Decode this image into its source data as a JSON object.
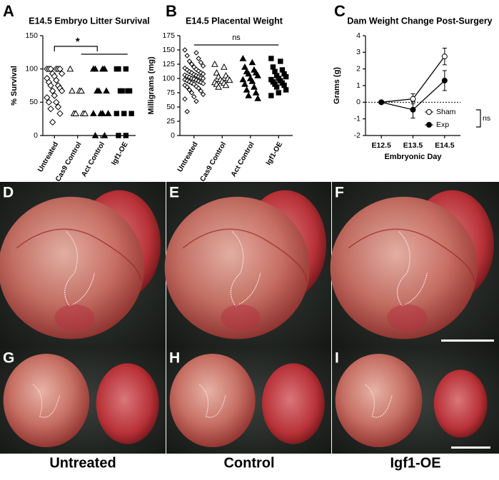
{
  "chart_data": [
    {
      "type": "dot",
      "panel": "A",
      "title": "E14.5 Embryo Litter Survival",
      "y_label": "% Survival",
      "categories": [
        "Untreated",
        "Cas9 Control",
        "Act Control",
        "Igf1-OE"
      ],
      "markers": [
        "diamond",
        "triangle",
        "triangle",
        "square"
      ],
      "filled": [
        false,
        false,
        true,
        true
      ],
      "values": [
        [
          100,
          100,
          100,
          100,
          100,
          100,
          93,
          93,
          89,
          86,
          83,
          80,
          75,
          75,
          71,
          67,
          67,
          60,
          57,
          50,
          50,
          43,
          40,
          33,
          20
        ],
        [
          100,
          67,
          67,
          67,
          33,
          33,
          33,
          33
        ],
        [
          100,
          100,
          100,
          100,
          67,
          67,
          67,
          33,
          33,
          33,
          33,
          0,
          0
        ],
        [
          100,
          100,
          100,
          67,
          67,
          67,
          67,
          33,
          33,
          33,
          0,
          0
        ]
      ],
      "ylim": [
        0,
        150
      ],
      "yticks": [
        0,
        50,
        100,
        150
      ],
      "annotation": "*"
    },
    {
      "type": "dot",
      "panel": "B",
      "title": "E14.5 Placental Weight",
      "y_label": "Milligrams (mg)",
      "categories": [
        "Untreated",
        "Cas9 Control",
        "Act Control",
        "Igf1-OE"
      ],
      "markers": [
        "diamond",
        "triangle",
        "triangle",
        "square"
      ],
      "filled": [
        false,
        false,
        true,
        true
      ],
      "values": [
        [
          150,
          145,
          140,
          135,
          130,
          128,
          125,
          122,
          120,
          118,
          116,
          115,
          113,
          112,
          110,
          110,
          108,
          107,
          106,
          105,
          104,
          103,
          102,
          101,
          100,
          100,
          99,
          98,
          97,
          96,
          95,
          94,
          93,
          92,
          91,
          90,
          88,
          86,
          85,
          83,
          80,
          78,
          75,
          72,
          68,
          64,
          60,
          42
        ],
        [
          125,
          120,
          110,
          105,
          103,
          100,
          98,
          97,
          95,
          93,
          92,
          90,
          88,
          85
        ],
        [
          135,
          128,
          120,
          115,
          112,
          110,
          108,
          105,
          100,
          98,
          95,
          90,
          85,
          80,
          75,
          70,
          65
        ],
        [
          135,
          130,
          120,
          115,
          112,
          108,
          105,
          103,
          100,
          98,
          96,
          94,
          92,
          90,
          88,
          85,
          80,
          75,
          70
        ]
      ],
      "ylim": [
        0,
        175
      ],
      "yticks": [
        0,
        25,
        50,
        75,
        100,
        125,
        150,
        175
      ],
      "annotation": "ns"
    },
    {
      "type": "line",
      "panel": "C",
      "title": "Dam Weight Change Post-Surgery",
      "y_label": "Grams (g)",
      "x_label": "Embryonic Day",
      "categories": [
        "E12.5",
        "E13.5",
        "E14.5"
      ],
      "series": [
        {
          "name": "Sham",
          "color": "#000000",
          "filled": false,
          "values": [
            0,
            0.2,
            2.75
          ],
          "errors": [
            0,
            0.3,
            0.5
          ]
        },
        {
          "name": "Exp",
          "color": "#000000",
          "filled": true,
          "values": [
            0,
            -0.45,
            1.3
          ],
          "errors": [
            0,
            0.5,
            0.6
          ]
        }
      ],
      "ylim": [
        -2,
        4
      ],
      "yticks": [
        -2,
        -1,
        0,
        1,
        2,
        3,
        4
      ],
      "reference_line": 0,
      "legend": "lower-right",
      "annotation": "ns"
    }
  ],
  "photos": [
    {
      "panel": "D"
    },
    {
      "panel": "E"
    },
    {
      "panel": "F"
    },
    {
      "panel": "G"
    },
    {
      "panel": "H"
    },
    {
      "panel": "I"
    }
  ],
  "column_labels": [
    "Untreated",
    "Control",
    "Igf1-OE"
  ]
}
